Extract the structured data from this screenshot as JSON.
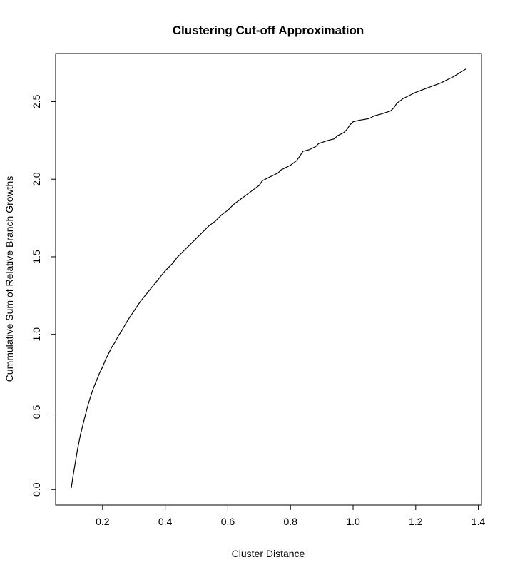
{
  "chart_data": {
    "type": "line",
    "title": "Clustering Cut-off Approximation",
    "xlabel": "Cluster Distance",
    "ylabel": "Cummulative Sum of Relative Branch Growths",
    "xlim": [
      0.05,
      1.41
    ],
    "ylim": [
      -0.1,
      2.81
    ],
    "x_ticks": [
      0.2,
      0.4,
      0.6,
      0.8,
      1.0,
      1.2,
      1.4
    ],
    "x_tick_labels": [
      "0.2",
      "0.4",
      "0.6",
      "0.8",
      "1.0",
      "1.2",
      "1.4"
    ],
    "y_ticks": [
      0.0,
      0.5,
      1.0,
      1.5,
      2.0,
      2.5
    ],
    "y_tick_labels": [
      "0.0",
      "0.5",
      "1.0",
      "1.5",
      "2.0",
      "2.5"
    ],
    "grid": false,
    "legend": "none",
    "color": "#000000",
    "series": [
      {
        "x": [
          0.1,
          0.105,
          0.11,
          0.115,
          0.12,
          0.125,
          0.13,
          0.14,
          0.15,
          0.16,
          0.17,
          0.18,
          0.19,
          0.2,
          0.21,
          0.22,
          0.23,
          0.24,
          0.25,
          0.26,
          0.28,
          0.3,
          0.32,
          0.34,
          0.36,
          0.38,
          0.4,
          0.42,
          0.44,
          0.46,
          0.48,
          0.5,
          0.52,
          0.54,
          0.56,
          0.58,
          0.6,
          0.62,
          0.64,
          0.66,
          0.68,
          0.7,
          0.71,
          0.72,
          0.74,
          0.76,
          0.77,
          0.78,
          0.8,
          0.82,
          0.83,
          0.84,
          0.86,
          0.88,
          0.89,
          0.92,
          0.94,
          0.95,
          0.97,
          0.98,
          0.99,
          1.0,
          1.02,
          1.05,
          1.07,
          1.09,
          1.12,
          1.13,
          1.14,
          1.16,
          1.2,
          1.24,
          1.28,
          1.32,
          1.36
        ],
        "y": [
          0.01,
          0.08,
          0.14,
          0.2,
          0.26,
          0.31,
          0.36,
          0.44,
          0.52,
          0.59,
          0.65,
          0.7,
          0.75,
          0.79,
          0.84,
          0.88,
          0.92,
          0.95,
          0.99,
          1.02,
          1.09,
          1.15,
          1.21,
          1.26,
          1.31,
          1.36,
          1.41,
          1.45,
          1.5,
          1.54,
          1.58,
          1.62,
          1.66,
          1.7,
          1.73,
          1.77,
          1.8,
          1.84,
          1.87,
          1.9,
          1.93,
          1.96,
          1.99,
          2.0,
          2.02,
          2.04,
          2.06,
          2.07,
          2.09,
          2.12,
          2.15,
          2.18,
          2.19,
          2.21,
          2.23,
          2.25,
          2.26,
          2.28,
          2.3,
          2.32,
          2.35,
          2.37,
          2.38,
          2.39,
          2.41,
          2.42,
          2.44,
          2.46,
          2.49,
          2.52,
          2.56,
          2.59,
          2.62,
          2.66,
          2.71
        ]
      }
    ]
  }
}
